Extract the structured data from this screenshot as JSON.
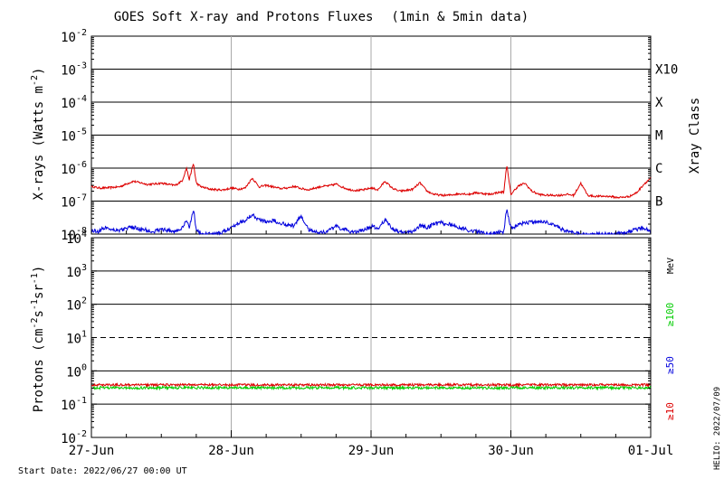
{
  "chart_data": [
    {
      "type": "line",
      "title": "GOES Soft X-ray and Protons Fluxes",
      "title_note": "(1min & 5min data)",
      "ylabel_base": "X-rays (Watts m",
      "ylabel_exp": "-2",
      "ylabel_close": ")",
      "yscale": "log",
      "ylim": [
        1e-08,
        0.01
      ],
      "y_ticks": [
        {
          "base": "10",
          "exp": "-2"
        },
        {
          "base": "10",
          "exp": "-3"
        },
        {
          "base": "10",
          "exp": "-4"
        },
        {
          "base": "10",
          "exp": "-5"
        },
        {
          "base": "10",
          "exp": "-6"
        },
        {
          "base": "10",
          "exp": "-7"
        },
        {
          "base": "10",
          "exp": "-8"
        }
      ],
      "y_tick_values": [
        0.01,
        0.001,
        0.0001,
        1e-05,
        1e-06,
        1e-07,
        1e-08
      ],
      "class_title": "Xray Class",
      "classes": [
        {
          "label": "X10",
          "value": 0.001
        },
        {
          "label": "X",
          "value": 0.0001
        },
        {
          "label": "M",
          "value": 1e-05
        },
        {
          "label": "C",
          "value": 1e-06
        },
        {
          "label": "B",
          "value": 1e-07
        }
      ],
      "grid": "horizontal at each decade from 1e-3 to 1e-7; vertical at each day",
      "series": [
        {
          "color": "#dd0000",
          "x": [
            0,
            0.05,
            0.1,
            0.15,
            0.2,
            0.25,
            0.3,
            0.35,
            0.4,
            0.45,
            0.5,
            0.55,
            0.6,
            0.65,
            0.68,
            0.7,
            0.73,
            0.75,
            0.78,
            0.8,
            0.85,
            0.9,
            0.95,
            1.0,
            1.05,
            1.1,
            1.15,
            1.2,
            1.25,
            1.3,
            1.35,
            1.4,
            1.45,
            1.5,
            1.55,
            1.6,
            1.65,
            1.7,
            1.75,
            1.8,
            1.85,
            1.9,
            1.95,
            2.0,
            2.05,
            2.1,
            2.15,
            2.2,
            2.25,
            2.3,
            2.35,
            2.4,
            2.45,
            2.5,
            2.55,
            2.6,
            2.65,
            2.7,
            2.75,
            2.8,
            2.85,
            2.9,
            2.95,
            2.97,
            3.0,
            3.05,
            3.1,
            3.15,
            3.2,
            3.25,
            3.3,
            3.35,
            3.4,
            3.45,
            3.5,
            3.55,
            3.6,
            3.65,
            3.7,
            3.75,
            3.8,
            3.85,
            3.9,
            3.95,
            4.0
          ],
          "y": [
            2.8e-07,
            2.5e-07,
            2.5e-07,
            2.6e-07,
            2.7e-07,
            3.3e-07,
            4e-07,
            3.6e-07,
            3.2e-07,
            3.3e-07,
            3.5e-07,
            3.2e-07,
            3e-07,
            4.2e-07,
            1e-06,
            4.5e-07,
            1.4e-06,
            3.5e-07,
            2.8e-07,
            2.6e-07,
            2.3e-07,
            2.2e-07,
            2.2e-07,
            2.5e-07,
            2.3e-07,
            2.5e-07,
            5e-07,
            2.7e-07,
            3e-07,
            2.7e-07,
            2.4e-07,
            2.5e-07,
            2.8e-07,
            2.4e-07,
            2.2e-07,
            2.5e-07,
            2.8e-07,
            2.9e-07,
            3.3e-07,
            2.6e-07,
            2.2e-07,
            2.1e-07,
            2.2e-07,
            2.5e-07,
            2.2e-07,
            4e-07,
            2.5e-07,
            2e-07,
            2.1e-07,
            2.3e-07,
            3.6e-07,
            2e-07,
            1.6e-07,
            1.5e-07,
            1.5e-07,
            1.6e-07,
            1.7e-07,
            1.6e-07,
            1.8e-07,
            1.7e-07,
            1.6e-07,
            1.8e-07,
            1.9e-07,
            1.3e-06,
            1.6e-07,
            2.8e-07,
            3.5e-07,
            2e-07,
            1.6e-07,
            1.5e-07,
            1.5e-07,
            1.5e-07,
            1.6e-07,
            1.5e-07,
            3.5e-07,
            1.5e-07,
            1.4e-07,
            1.4e-07,
            1.4e-07,
            1.3e-07,
            1.3e-07,
            1.4e-07,
            1.8e-07,
            3.2e-07,
            5e-07
          ]
        },
        {
          "color": "#0000dd",
          "x": [
            0,
            0.05,
            0.1,
            0.15,
            0.2,
            0.25,
            0.3,
            0.35,
            0.4,
            0.45,
            0.5,
            0.55,
            0.6,
            0.65,
            0.68,
            0.7,
            0.73,
            0.75,
            0.78,
            0.8,
            0.85,
            0.9,
            0.95,
            1.0,
            1.05,
            1.1,
            1.15,
            1.2,
            1.25,
            1.3,
            1.35,
            1.4,
            1.45,
            1.5,
            1.55,
            1.6,
            1.65,
            1.7,
            1.75,
            1.8,
            1.85,
            1.9,
            1.95,
            2.0,
            2.05,
            2.1,
            2.15,
            2.2,
            2.25,
            2.3,
            2.35,
            2.4,
            2.45,
            2.5,
            2.55,
            2.6,
            2.65,
            2.7,
            2.75,
            2.8,
            2.85,
            2.9,
            2.95,
            2.97,
            3.0,
            3.05,
            3.1,
            3.15,
            3.2,
            3.25,
            3.3,
            3.35,
            3.4,
            3.45,
            3.5,
            3.55,
            3.6,
            3.65,
            3.7,
            3.75,
            3.8,
            3.85,
            3.9,
            3.95,
            4.0
          ],
          "y": [
            1.3e-08,
            1.2e-08,
            1.6e-08,
            1.4e-08,
            1.3e-08,
            1.5e-08,
            1.6e-08,
            1.4e-08,
            1.3e-08,
            1.2e-08,
            1.4e-08,
            1.3e-08,
            1.2e-08,
            1.5e-08,
            2.5e-08,
            1.6e-08,
            6e-08,
            1.3e-08,
            1.1e-08,
            1e-08,
            1e-08,
            1e-08,
            1.2e-08,
            1.6e-08,
            2.2e-08,
            2.6e-08,
            4e-08,
            2.7e-08,
            2.4e-08,
            2.6e-08,
            2.2e-08,
            1.9e-08,
            1.8e-08,
            3.6e-08,
            1.4e-08,
            1.2e-08,
            1.1e-08,
            1.3e-08,
            1.7e-08,
            1.4e-08,
            1.2e-08,
            1.2e-08,
            1.3e-08,
            1.7e-08,
            1.5e-08,
            2.7e-08,
            1.5e-08,
            1.2e-08,
            1.1e-08,
            1.2e-08,
            1.8e-08,
            1.6e-08,
            2e-08,
            2.2e-08,
            2e-08,
            1.8e-08,
            1.5e-08,
            1.3e-08,
            1.2e-08,
            1.1e-08,
            1e-08,
            1.1e-08,
            1.2e-08,
            6e-08,
            1.4e-08,
            1.8e-08,
            2.2e-08,
            2.3e-08,
            2.4e-08,
            2.3e-08,
            2e-08,
            1.5e-08,
            1.2e-08,
            1.1e-08,
            1e-08,
            1e-08,
            1e-08,
            1e-08,
            1e-08,
            1e-08,
            1.1e-08,
            1.2e-08,
            1.4e-08,
            1.5e-08,
            1.3e-08
          ]
        }
      ]
    },
    {
      "type": "line",
      "ylabel_base": "Protons (cm",
      "ylabel_exp1": "-2",
      "ylabel_s": "s",
      "ylabel_exp2": "-1",
      "ylabel_sr": "sr",
      "ylabel_exp3": "-1",
      "ylabel_close": ")",
      "yscale": "log",
      "ylim": [
        0.01,
        10000
      ],
      "y_ticks": [
        {
          "base": "10",
          "exp": "4"
        },
        {
          "base": "10",
          "exp": "3"
        },
        {
          "base": "10",
          "exp": "2"
        },
        {
          "base": "10",
          "exp": "1"
        },
        {
          "base": "10",
          "exp": "0"
        },
        {
          "base": "10",
          "exp": "-1"
        },
        {
          "base": "10",
          "exp": "-2"
        }
      ],
      "y_tick_values": [
        10000,
        1000,
        100,
        10,
        1,
        0.1,
        0.01
      ],
      "threshold_line": 10,
      "unit_label": "MeV",
      "legend": [
        {
          "label": "≥100",
          "color": "#00cc00"
        },
        {
          "label": "≥50",
          "color": "#0000dd"
        },
        {
          "label": "≥10",
          "color": "#dd0000"
        }
      ],
      "series": [
        {
          "color": "#dd0000",
          "x": [
            0,
            4
          ],
          "y": [
            0.38,
            0.38
          ]
        },
        {
          "color": "#00cc00",
          "x": [
            0,
            4
          ],
          "y": [
            0.31,
            0.31
          ]
        }
      ]
    }
  ],
  "x_ticks": [
    "27-Jun",
    "28-Jun",
    "29-Jun",
    "30-Jun",
    "01-Jul"
  ],
  "footer": {
    "start_date": "Start Date: 2022/06/27 00:00 UT",
    "credit": "HELIO: 2022/07/09"
  }
}
